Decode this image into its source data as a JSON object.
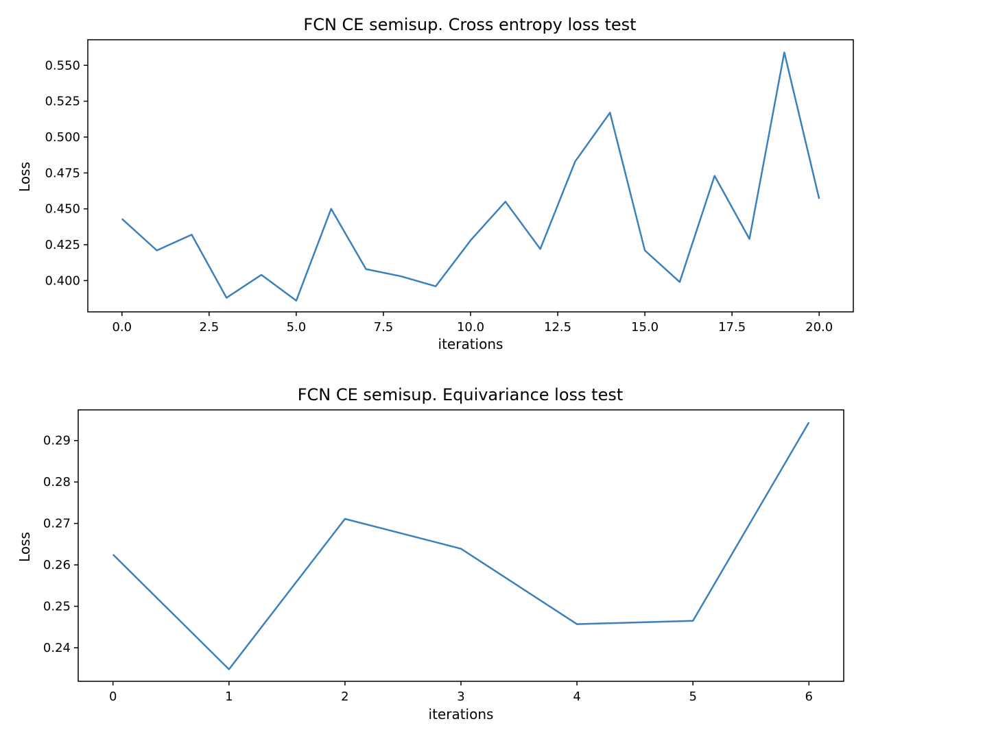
{
  "chart_data": [
    {
      "type": "line",
      "title": "FCN CE semisup. Cross entropy loss test",
      "xlabel": "iterations",
      "ylabel": "Loss",
      "x": [
        0,
        1,
        2,
        3,
        4,
        5,
        6,
        7,
        8,
        9,
        10,
        11,
        12,
        13,
        14,
        15,
        16,
        17,
        18,
        19,
        20
      ],
      "series": [
        {
          "values": [
            0.443,
            0.421,
            0.432,
            0.388,
            0.404,
            0.386,
            0.45,
            0.408,
            0.403,
            0.396,
            0.428,
            0.455,
            0.422,
            0.483,
            0.517,
            0.421,
            0.399,
            0.473,
            0.429,
            0.559,
            0.457
          ]
        }
      ],
      "xlim": [
        -0.98,
        20.98
      ],
      "ylim": [
        0.3782,
        0.5678
      ],
      "xticks": [
        0.0,
        2.5,
        5.0,
        7.5,
        10.0,
        12.5,
        15.0,
        17.5,
        20.0
      ],
      "xtick_labels": [
        "0.0",
        "2.5",
        "5.0",
        "7.5",
        "10.0",
        "12.5",
        "15.0",
        "17.5",
        "20.0"
      ],
      "yticks": [
        0.4,
        0.425,
        0.45,
        0.475,
        0.5,
        0.525,
        0.55
      ],
      "ytick_labels": [
        "0.400",
        "0.425",
        "0.450",
        "0.475",
        "0.500",
        "0.525",
        "0.550"
      ],
      "grid": false,
      "line_color": "#3a80bd"
    },
    {
      "type": "line",
      "title": "FCN CE semisup. Equivariance loss test",
      "xlabel": "iterations",
      "ylabel": "Loss",
      "x": [
        0,
        1,
        2,
        3,
        4,
        5,
        6
      ],
      "series": [
        {
          "values": [
            0.2625,
            0.2348,
            0.2711,
            0.2639,
            0.2457,
            0.2465,
            0.2944
          ]
        }
      ],
      "xlim": [
        -0.3,
        6.3
      ],
      "ylim": [
        0.2319,
        0.2974
      ],
      "xticks": [
        0,
        1,
        2,
        3,
        4,
        5,
        6
      ],
      "xtick_labels": [
        "0",
        "1",
        "2",
        "3",
        "4",
        "5",
        "6"
      ],
      "yticks": [
        0.24,
        0.25,
        0.26,
        0.27,
        0.28,
        0.29
      ],
      "ytick_labels": [
        "0.24",
        "0.25",
        "0.26",
        "0.27",
        "0.28",
        "0.29"
      ],
      "grid": false,
      "line_color": "#3a80bd"
    }
  ]
}
